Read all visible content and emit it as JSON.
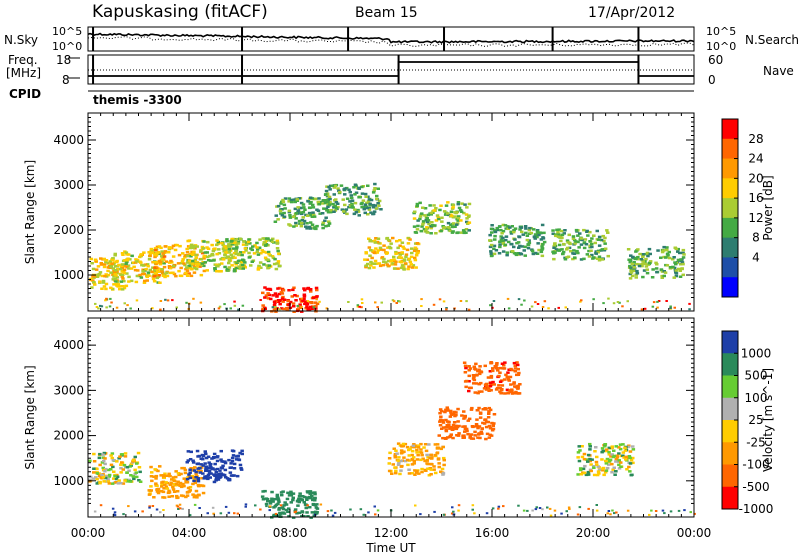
{
  "header": {
    "station": "Kapuskasing (fitACF)",
    "beam": "Beam 15",
    "date": "17/Apr/2012"
  },
  "top_panels": {
    "noise": {
      "left_label": "N.Sky",
      "left_ticks": [
        "10^5",
        "10^0"
      ],
      "right_ticks": [
        "10^5",
        "10^0"
      ],
      "right_label": "N.Search"
    },
    "freq": {
      "left_label_1": "Freq.",
      "left_label_2": "[MHz]",
      "left_ticks": [
        "18",
        "8"
      ],
      "right_ticks": [
        "60",
        "0"
      ],
      "right_label": "Nave"
    },
    "cpid": {
      "label": "CPID",
      "value": "themis -3300"
    }
  },
  "chart_data": [
    {
      "type": "heatmap",
      "title": "",
      "quantity": "Power",
      "colorbar_label": "Power [dB]",
      "colorbar_ticks": [
        "28",
        "24",
        "20",
        "16",
        "12",
        "8",
        "4"
      ],
      "colorbar_colors": [
        "#ff0000",
        "#ff6600",
        "#ff9900",
        "#ffcc00",
        "#aacc33",
        "#44aa44",
        "#2e7d70",
        "#1e4fa8",
        "#0000ff"
      ],
      "xlabel": "Time UT",
      "ylabel": "Slant Range [km]",
      "ylim": [
        200,
        4600
      ],
      "yticks": [
        "4000",
        "3000",
        "2000",
        "1000"
      ],
      "xlim": [
        0,
        24
      ],
      "xticks": [
        "00:00",
        "04:00",
        "08:00",
        "12:00",
        "16:00",
        "20:00",
        "00:00"
      ],
      "ground_scatter_color": "#b0b0b0",
      "echo_regions": [
        {
          "t": 0.0,
          "r": 1050,
          "value": 16
        },
        {
          "t": 1.5,
          "r": 1200,
          "value": 14
        },
        {
          "t": 3.0,
          "r": 1350,
          "value": 18
        },
        {
          "t": 4.5,
          "r": 1450,
          "value": 13
        },
        {
          "t": 6.0,
          "r": 1500,
          "value": 11
        },
        {
          "t": 8.0,
          "r": 2400,
          "value": 8
        },
        {
          "t": 10.0,
          "r": 2700,
          "value": 7
        },
        {
          "t": 11.5,
          "r": 1500,
          "value": 15
        },
        {
          "t": 13.5,
          "r": 2300,
          "value": 10
        },
        {
          "t": 16.5,
          "r": 1800,
          "value": 7
        },
        {
          "t": 19.0,
          "r": 1700,
          "value": 8
        },
        {
          "t": 22.0,
          "r": 1300,
          "value": 9
        },
        {
          "t": 7.5,
          "r": 400,
          "value": 27
        }
      ]
    },
    {
      "type": "heatmap",
      "title": "",
      "quantity": "Velocity",
      "colorbar_label": "Velocity [m s^-1]",
      "colorbar_ticks": [
        "1000",
        "500",
        "100",
        "25",
        "-25",
        "-100",
        "-500",
        "-1000"
      ],
      "colorbar_colors": [
        "#1e3fa8",
        "#2a8a5a",
        "#66cc33",
        "#b0b0b0",
        "#ffcc00",
        "#ff9900",
        "#ff6600",
        "#ff0000"
      ],
      "xlabel": "Time UT",
      "ylabel": "Slant Range [km]",
      "ylim": [
        200,
        4600
      ],
      "yticks": [
        "4000",
        "3000",
        "2000",
        "1000"
      ],
      "xlim": [
        0,
        24
      ],
      "xticks": [
        "00:00",
        "04:00",
        "08:00",
        "12:00",
        "16:00",
        "20:00",
        "00:00"
      ],
      "ground_scatter_color": "#b0b0b0",
      "echo_regions": [
        {
          "t": 0.5,
          "r": 1300,
          "value": 0
        },
        {
          "t": 3.0,
          "r": 1000,
          "value": -200
        },
        {
          "t": 4.5,
          "r": 1350,
          "value": 800
        },
        {
          "t": 7.5,
          "r": 450,
          "value": 300
        },
        {
          "t": 12.5,
          "r": 1500,
          "value": -150
        },
        {
          "t": 14.5,
          "r": 2300,
          "value": -800
        },
        {
          "t": 15.5,
          "r": 3300,
          "value": -900
        },
        {
          "t": 20.0,
          "r": 1500,
          "value": 0
        }
      ]
    }
  ]
}
